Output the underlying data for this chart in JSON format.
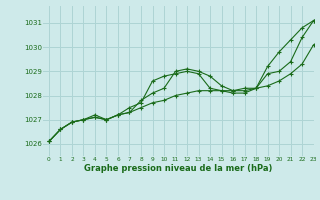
{
  "title": "Graphe pression niveau de la mer (hPa)",
  "bg_color": "#ceeaea",
  "grid_color": "#aed4d4",
  "line_color": "#1a6b1a",
  "marker_color": "#1a6b1a",
  "xlim": [
    -0.5,
    23
  ],
  "ylim": [
    1025.5,
    1031.7
  ],
  "yticks": [
    1026,
    1027,
    1028,
    1029,
    1030,
    1031
  ],
  "xticks": [
    0,
    1,
    2,
    3,
    4,
    5,
    6,
    7,
    8,
    9,
    10,
    11,
    12,
    13,
    14,
    15,
    16,
    17,
    18,
    19,
    20,
    21,
    22,
    23
  ],
  "series": [
    [
      1026.1,
      1026.6,
      1026.9,
      1027.0,
      1027.2,
      1027.0,
      1027.2,
      1027.5,
      1027.7,
      1028.6,
      1028.8,
      1028.9,
      1029.0,
      1028.9,
      1028.3,
      1028.2,
      1028.1,
      1028.1,
      1028.3,
      1029.2,
      1029.8,
      1030.3,
      1030.8,
      1031.1
    ],
    [
      1026.1,
      1026.6,
      1026.9,
      1027.0,
      1027.1,
      1027.0,
      1027.2,
      1027.3,
      1027.5,
      1027.7,
      1027.8,
      1028.0,
      1028.1,
      1028.2,
      1028.2,
      1028.2,
      1028.2,
      1028.2,
      1028.3,
      1028.4,
      1028.6,
      1028.9,
      1029.3,
      1030.1
    ],
    [
      1026.1,
      1026.6,
      1026.9,
      1027.0,
      1027.1,
      1027.0,
      1027.2,
      1027.3,
      1027.8,
      1028.1,
      1028.3,
      1029.0,
      1029.1,
      1029.0,
      1028.8,
      1028.4,
      1028.2,
      1028.3,
      1028.3,
      1028.9,
      1029.0,
      1029.4,
      1030.4,
      1031.1
    ]
  ],
  "title_fontsize": 6.0,
  "xtick_fontsize": 4.2,
  "ytick_fontsize": 5.0
}
